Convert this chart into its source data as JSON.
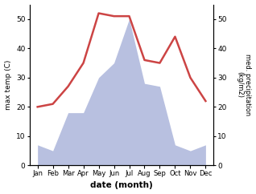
{
  "months": [
    "Jan",
    "Feb",
    "Mar",
    "Apr",
    "May",
    "Jun",
    "Jul",
    "Aug",
    "Sep",
    "Oct",
    "Nov",
    "Dec"
  ],
  "month_x": [
    0,
    1,
    2,
    3,
    4,
    5,
    6,
    7,
    8,
    9,
    10,
    11
  ],
  "temperature": [
    20,
    21,
    27,
    35,
    52,
    51,
    51,
    36,
    35,
    44,
    30,
    22
  ],
  "precipitation": [
    7,
    5,
    18,
    18,
    30,
    35,
    50,
    28,
    27,
    7,
    5,
    7
  ],
  "temp_color": "#cc4444",
  "precip_fill_color": "#b8c0e0",
  "ylabel_left": "max temp (C)",
  "ylabel_right": "med. precipitation\n(kg/m2)",
  "xlabel": "date (month)",
  "ylim_left": [
    0,
    55
  ],
  "ylim_right": [
    0,
    55
  ],
  "yticks_left": [
    0,
    10,
    20,
    30,
    40,
    50
  ],
  "yticks_right": [
    0,
    10,
    20,
    30,
    40,
    50
  ],
  "bg_color": "#ffffff",
  "temp_linewidth": 1.8
}
